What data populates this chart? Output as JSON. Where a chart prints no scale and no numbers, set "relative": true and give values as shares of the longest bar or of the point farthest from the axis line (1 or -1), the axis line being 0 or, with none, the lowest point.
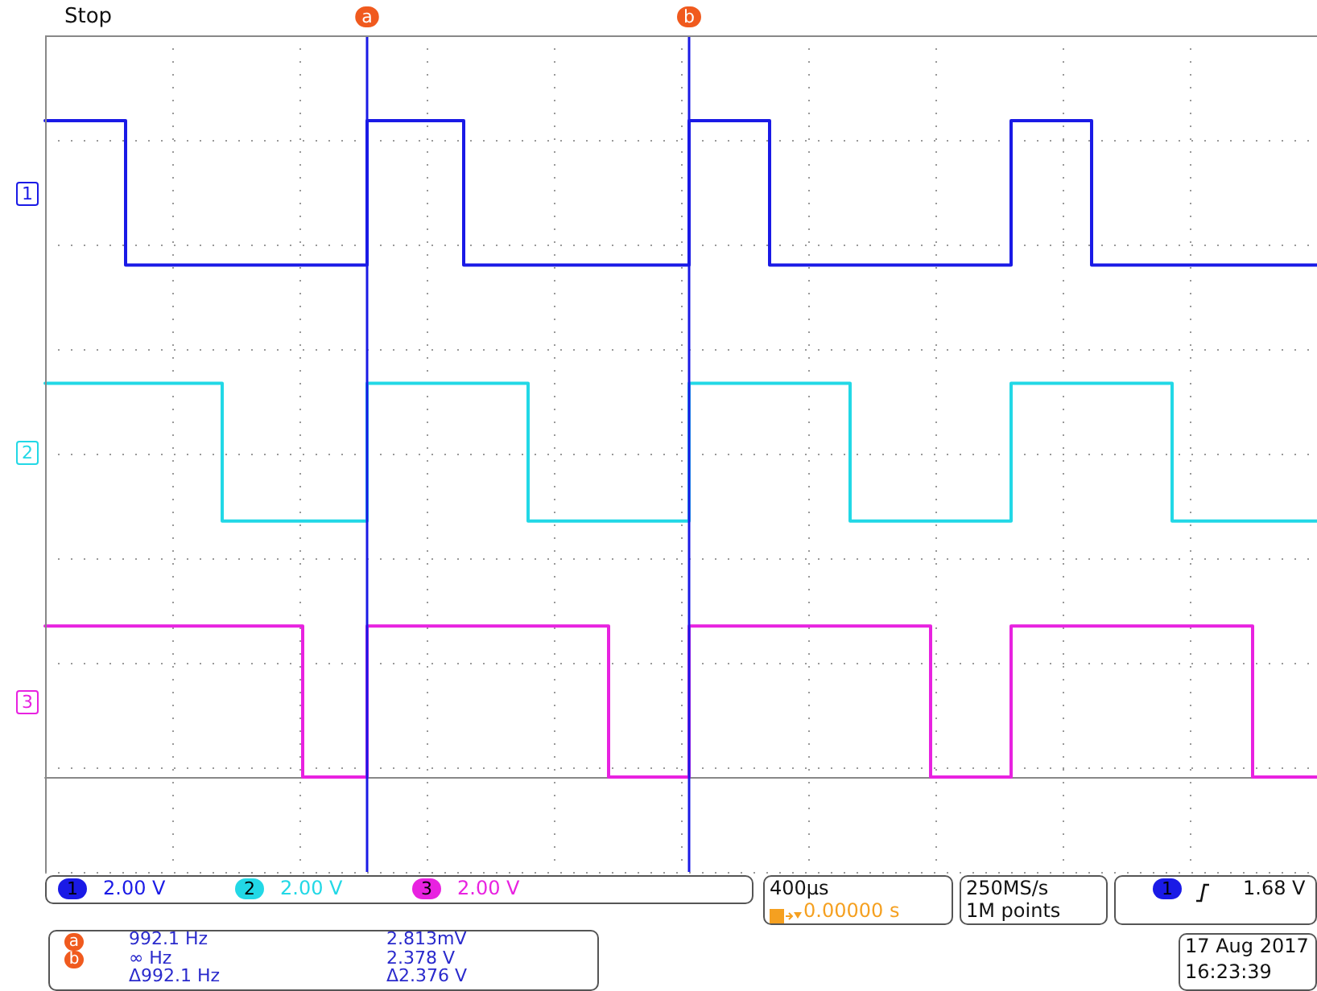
{
  "chart_data": {
    "type": "step",
    "relative": true,
    "grid": true,
    "marker": "none",
    "line_style": "solid",
    "tick_labels": false,
    "categories": [
      null,
      null,
      null,
      null,
      null,
      null,
      null,
      null,
      null,
      null,
      null,
      null,
      null,
      null,
      null,
      null,
      null,
      null,
      null,
      null,
      null,
      null,
      null,
      null,
      null,
      null,
      null,
      null,
      null,
      null,
      null,
      null,
      null,
      null,
      null,
      null,
      null,
      null,
      null,
      null,
      null,
      null,
      null,
      null,
      null,
      null,
      null,
      null,
      null,
      null,
      null,
      null,
      null,
      null,
      null,
      null,
      null,
      null,
      null,
      null,
      null,
      null,
      null,
      null,
      null,
      null,
      null,
      null,
      null,
      null,
      null,
      null,
      null,
      null,
      null,
      null,
      null,
      null,
      null,
      null
    ],
    "series": [
      {
        "name": "1",
        "color": "#1a1ae6",
        "values": [
          1,
          1,
          1,
          1,
          1,
          0.78,
          0.78,
          0.78,
          0.78,
          0.78,
          0.78,
          0.78,
          0.78,
          0.78,
          0.78,
          0.78,
          0.78,
          0.78,
          0.78,
          0.78,
          1,
          1,
          1,
          1,
          1,
          1,
          0.78,
          0.78,
          0.78,
          0.78,
          0.78,
          0.78,
          0.78,
          0.78,
          0.78,
          0.78,
          0.78,
          0.78,
          0.78,
          0.78,
          1,
          1,
          1,
          1,
          1,
          0.78,
          0.78,
          0.78,
          0.78,
          0.78,
          0.78,
          0.78,
          0.78,
          0.78,
          0.78,
          0.78,
          0.78,
          0.78,
          0.78,
          0.78,
          1,
          1,
          1,
          1,
          1,
          0.78,
          0.78,
          0.78,
          0.78,
          0.78,
          0.78,
          0.78,
          0.78,
          0.78,
          0.78,
          0.78,
          0.78,
          0.78,
          0.78,
          0.78
        ]
      },
      {
        "name": "2",
        "color": "#22d8e6",
        "values": [
          0.6,
          0.6,
          0.6,
          0.6,
          0.6,
          0.6,
          0.6,
          0.6,
          0.6,
          0.6,
          0.6,
          0.39,
          0.39,
          0.39,
          0.39,
          0.39,
          0.39,
          0.39,
          0.39,
          0.39,
          0.6,
          0.6,
          0.6,
          0.6,
          0.6,
          0.6,
          0.6,
          0.6,
          0.6,
          0.6,
          0.39,
          0.39,
          0.39,
          0.39,
          0.39,
          0.39,
          0.39,
          0.39,
          0.39,
          0.39,
          0.6,
          0.6,
          0.6,
          0.6,
          0.6,
          0.6,
          0.6,
          0.6,
          0.6,
          0.6,
          0.39,
          0.39,
          0.39,
          0.39,
          0.39,
          0.39,
          0.39,
          0.39,
          0.39,
          0.39,
          0.6,
          0.6,
          0.6,
          0.6,
          0.6,
          0.6,
          0.6,
          0.6,
          0.6,
          0.6,
          0.39,
          0.39,
          0.39,
          0.39,
          0.39,
          0.39,
          0.39,
          0.39,
          0.39,
          0.39
        ]
      },
      {
        "name": "3",
        "color": "#e822e0",
        "values": [
          0.23,
          0.23,
          0.23,
          0.23,
          0.23,
          0.23,
          0.23,
          0.23,
          0.23,
          0.23,
          0.23,
          0.23,
          0.23,
          0.23,
          0.23,
          0.23,
          0,
          0,
          0,
          0,
          0.23,
          0.23,
          0.23,
          0.23,
          0.23,
          0.23,
          0.23,
          0.23,
          0.23,
          0.23,
          0.23,
          0.23,
          0.23,
          0.23,
          0.23,
          0,
          0,
          0,
          0,
          0,
          0.23,
          0.23,
          0.23,
          0.23,
          0.23,
          0.23,
          0.23,
          0.23,
          0.23,
          0.23,
          0.23,
          0.23,
          0.23,
          0.23,
          0.23,
          0,
          0,
          0,
          0,
          0,
          0.23,
          0.23,
          0.23,
          0.23,
          0.23,
          0.23,
          0.23,
          0.23,
          0.23,
          0.23,
          0.23,
          0.23,
          0.23,
          0.23,
          0.23,
          0,
          0,
          0,
          0,
          0
        ]
      }
    ],
    "annotations": [
      "Stop",
      "992.1 Hz",
      "2.813mV",
      "∞ Hz",
      "2.378 V",
      "Δ992.1 Hz",
      "Δ2.376 V",
      "2.00 V",
      "2.00 V",
      "2.00 V",
      "400µs",
      "0.00000 s",
      "250MS/s",
      "1M points",
      "1",
      "1.68 V",
      "17 Aug 2017",
      "16:23:39",
      "a",
      "b"
    ]
  }
}
